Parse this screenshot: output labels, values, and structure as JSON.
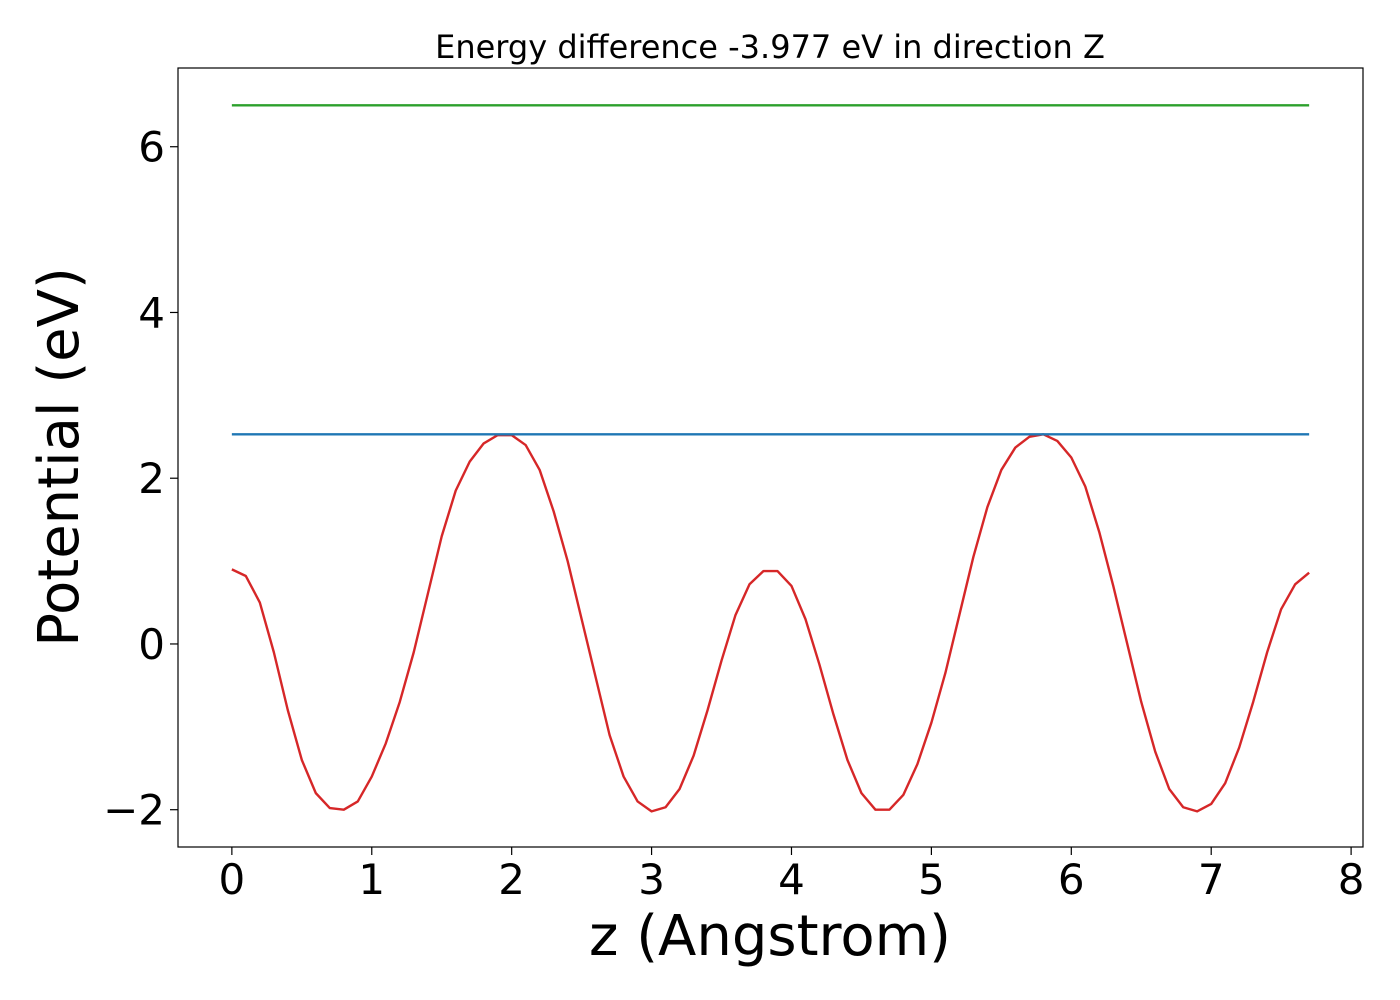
{
  "chart_data": {
    "type": "line",
    "title": "Energy difference -3.977 eV in direction Z",
    "xlabel": "z (Angstrom)",
    "ylabel": "Potential (eV)",
    "xlim": [
      -0.385,
      8.085
    ],
    "ylim": [
      -2.45,
      6.95
    ],
    "xticks": [
      0,
      1,
      2,
      3,
      4,
      5,
      6,
      7,
      8
    ],
    "xtick_labels": [
      "0",
      "1",
      "2",
      "3",
      "4",
      "5",
      "6",
      "7",
      "8"
    ],
    "yticks": [
      -2,
      0,
      2,
      4,
      6
    ],
    "ytick_labels": [
      "−2",
      "0",
      "2",
      "4",
      "6"
    ],
    "grid": false,
    "series": [
      {
        "color": "#d62728",
        "x": [
          0.0,
          0.1,
          0.2,
          0.3,
          0.4,
          0.5,
          0.6,
          0.7,
          0.8,
          0.9,
          1.0,
          1.1,
          1.2,
          1.3,
          1.4,
          1.5,
          1.6,
          1.7,
          1.8,
          1.9,
          2.0,
          2.1,
          2.2,
          2.3,
          2.4,
          2.5,
          2.6,
          2.7,
          2.8,
          2.9,
          3.0,
          3.1,
          3.2,
          3.3,
          3.4,
          3.5,
          3.6,
          3.7,
          3.8,
          3.9,
          4.0,
          4.1,
          4.2,
          4.3,
          4.4,
          4.5,
          4.6,
          4.7,
          4.8,
          4.9,
          5.0,
          5.1,
          5.2,
          5.3,
          5.4,
          5.5,
          5.6,
          5.7,
          5.8,
          5.9,
          6.0,
          6.1,
          6.2,
          6.3,
          6.4,
          6.5,
          6.6,
          6.7,
          6.8,
          6.9,
          7.0,
          7.1,
          7.2,
          7.3,
          7.4,
          7.5,
          7.6,
          7.7
        ],
        "y": [
          0.9,
          0.82,
          0.5,
          -0.1,
          -0.8,
          -1.4,
          -1.8,
          -1.98,
          -2.0,
          -1.9,
          -1.6,
          -1.2,
          -0.7,
          -0.1,
          0.6,
          1.3,
          1.85,
          2.2,
          2.42,
          2.52,
          2.52,
          2.4,
          2.1,
          1.6,
          1.0,
          0.3,
          -0.4,
          -1.1,
          -1.6,
          -1.9,
          -2.02,
          -1.97,
          -1.75,
          -1.35,
          -0.8,
          -0.2,
          0.35,
          0.72,
          0.88,
          0.88,
          0.7,
          0.3,
          -0.25,
          -0.85,
          -1.4,
          -1.8,
          -2.0,
          -2.0,
          -1.82,
          -1.45,
          -0.95,
          -0.35,
          0.35,
          1.05,
          1.65,
          2.1,
          2.37,
          2.5,
          2.53,
          2.45,
          2.25,
          1.9,
          1.35,
          0.7,
          0.0,
          -0.7,
          -1.3,
          -1.75,
          -1.97,
          -2.02,
          -1.93,
          -1.68,
          -1.25,
          -0.7,
          -0.1,
          0.42,
          0.72,
          0.86
        ]
      },
      {
        "color": "#1f77b4",
        "x": [
          0.0,
          7.7
        ],
        "y": [
          2.53,
          2.53
        ]
      },
      {
        "color": "#2ca02c",
        "x": [
          0.0,
          7.7
        ],
        "y": [
          6.5,
          6.5
        ]
      }
    ]
  }
}
